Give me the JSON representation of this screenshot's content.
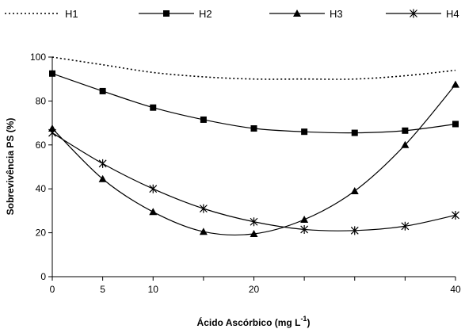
{
  "chart_data": {
    "type": "line",
    "title": "",
    "xlabel": "Ácido Ascórbico (mg L",
    "xlabel_sup": "-1",
    "xlabel_close": ")",
    "ylabel": "Sobrevivência PS (%)",
    "ylim": [
      0,
      100
    ],
    "yticks": [
      "0",
      "20",
      "40",
      "60",
      "80",
      "100"
    ],
    "xtick_labels": [
      "0",
      "5",
      "10",
      "20",
      "40"
    ],
    "legend_position": "top",
    "x": [
      0,
      1,
      2,
      3,
      4,
      5,
      6,
      7,
      8
    ],
    "series": [
      {
        "name": "H1",
        "marker": "none",
        "style": "dotted",
        "values": [
          100,
          96.5,
          93,
          91,
          90,
          90,
          90,
          91.5,
          94
        ]
      },
      {
        "name": "H2",
        "marker": "square",
        "style": "solid",
        "values": [
          92.5,
          84.5,
          77,
          71.5,
          67.5,
          66,
          65.5,
          66.5,
          69.5
        ]
      },
      {
        "name": "H3",
        "marker": "triangle",
        "style": "solid",
        "values": [
          67.5,
          44.5,
          29.5,
          20.5,
          19.5,
          26,
          39,
          60,
          87.5
        ]
      },
      {
        "name": "H4",
        "marker": "star",
        "style": "solid",
        "values": [
          65.5,
          51.5,
          40,
          31,
          25,
          21.5,
          21,
          23,
          28
        ]
      }
    ]
  }
}
